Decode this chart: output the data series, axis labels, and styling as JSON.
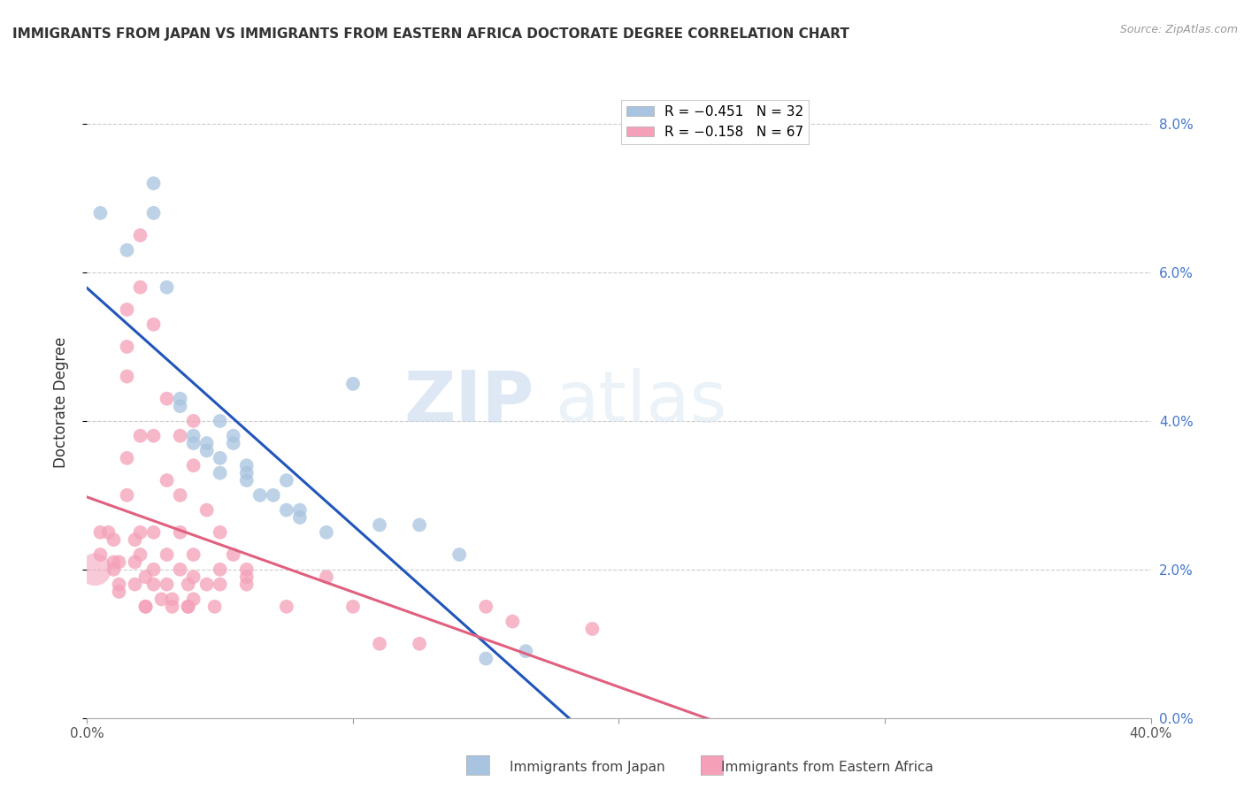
{
  "title": "IMMIGRANTS FROM JAPAN VS IMMIGRANTS FROM EASTERN AFRICA DOCTORATE DEGREE CORRELATION CHART",
  "source": "Source: ZipAtlas.com",
  "ylabel": "Doctorate Degree",
  "japan_color": "#a8c4e0",
  "africa_color": "#f4a0b8",
  "japan_line_color": "#2255bb",
  "africa_line_color": "#e06080",
  "watermark_zip": "ZIP",
  "watermark_atlas": "atlas",
  "japan_points": [
    [
      0.5,
      6.8
    ],
    [
      1.5,
      6.3
    ],
    [
      2.5,
      7.2
    ],
    [
      2.5,
      6.8
    ],
    [
      3.0,
      5.8
    ],
    [
      3.5,
      4.3
    ],
    [
      3.5,
      4.2
    ],
    [
      4.0,
      3.8
    ],
    [
      4.0,
      3.7
    ],
    [
      4.5,
      3.7
    ],
    [
      4.5,
      3.6
    ],
    [
      5.0,
      4.0
    ],
    [
      5.0,
      3.5
    ],
    [
      5.0,
      3.3
    ],
    [
      5.5,
      3.8
    ],
    [
      5.5,
      3.7
    ],
    [
      6.0,
      3.4
    ],
    [
      6.0,
      3.3
    ],
    [
      6.0,
      3.2
    ],
    [
      6.5,
      3.0
    ],
    [
      7.0,
      3.0
    ],
    [
      7.5,
      3.2
    ],
    [
      7.5,
      2.8
    ],
    [
      8.0,
      2.8
    ],
    [
      8.0,
      2.7
    ],
    [
      9.0,
      2.5
    ],
    [
      10.0,
      4.5
    ],
    [
      11.0,
      2.6
    ],
    [
      12.5,
      2.6
    ],
    [
      14.0,
      2.2
    ],
    [
      15.0,
      0.8
    ],
    [
      16.5,
      0.9
    ]
  ],
  "africa_points": [
    [
      0.5,
      2.5
    ],
    [
      0.5,
      2.2
    ],
    [
      0.8,
      2.5
    ],
    [
      1.0,
      2.4
    ],
    [
      1.0,
      2.1
    ],
    [
      1.0,
      2.0
    ],
    [
      1.2,
      2.1
    ],
    [
      1.2,
      1.8
    ],
    [
      1.2,
      1.7
    ],
    [
      1.5,
      5.5
    ],
    [
      1.5,
      5.0
    ],
    [
      1.5,
      4.6
    ],
    [
      1.5,
      3.5
    ],
    [
      1.5,
      3.0
    ],
    [
      1.8,
      2.4
    ],
    [
      1.8,
      2.1
    ],
    [
      1.8,
      1.8
    ],
    [
      2.0,
      6.5
    ],
    [
      2.0,
      5.8
    ],
    [
      2.0,
      3.8
    ],
    [
      2.0,
      2.5
    ],
    [
      2.0,
      2.2
    ],
    [
      2.2,
      1.9
    ],
    [
      2.2,
      1.5
    ],
    [
      2.2,
      1.5
    ],
    [
      2.5,
      5.3
    ],
    [
      2.5,
      3.8
    ],
    [
      2.5,
      2.5
    ],
    [
      2.5,
      2.0
    ],
    [
      2.5,
      1.8
    ],
    [
      2.8,
      1.6
    ],
    [
      3.0,
      4.3
    ],
    [
      3.0,
      3.2
    ],
    [
      3.0,
      2.2
    ],
    [
      3.0,
      1.8
    ],
    [
      3.2,
      1.6
    ],
    [
      3.2,
      1.5
    ],
    [
      3.5,
      3.8
    ],
    [
      3.5,
      3.0
    ],
    [
      3.5,
      2.5
    ],
    [
      3.5,
      2.0
    ],
    [
      3.8,
      1.8
    ],
    [
      3.8,
      1.5
    ],
    [
      3.8,
      1.5
    ],
    [
      4.0,
      4.0
    ],
    [
      4.0,
      3.4
    ],
    [
      4.0,
      2.2
    ],
    [
      4.0,
      1.9
    ],
    [
      4.0,
      1.6
    ],
    [
      4.5,
      2.8
    ],
    [
      4.5,
      1.8
    ],
    [
      4.8,
      1.5
    ],
    [
      5.0,
      2.5
    ],
    [
      5.0,
      2.0
    ],
    [
      5.0,
      1.8
    ],
    [
      5.5,
      2.2
    ],
    [
      6.0,
      2.0
    ],
    [
      6.0,
      1.9
    ],
    [
      6.0,
      1.8
    ],
    [
      7.5,
      1.5
    ],
    [
      9.0,
      1.9
    ],
    [
      10.0,
      1.5
    ],
    [
      11.0,
      1.0
    ],
    [
      12.5,
      1.0
    ],
    [
      15.0,
      1.5
    ],
    [
      16.0,
      1.3
    ],
    [
      19.0,
      1.2
    ]
  ],
  "africa_large_point": [
    0.3,
    2.0
  ],
  "xlim": [
    0.0,
    40.0
  ],
  "ylim": [
    0.0,
    8.5
  ],
  "xtick_positions": [
    0.0,
    10.0,
    20.0,
    30.0,
    40.0
  ],
  "xtick_labels_show": [
    "0.0%",
    "",
    "",
    "",
    "40.0%"
  ],
  "ytick_positions": [
    0.0,
    2.0,
    4.0,
    6.0,
    8.0
  ],
  "ytick_labels": [
    "0.0%",
    "2.0%",
    "4.0%",
    "6.0%",
    "8.0%"
  ],
  "grid_color": "#cccccc",
  "background_color": "#ffffff",
  "title_fontsize": 11,
  "axis_label_fontsize": 11,
  "tick_fontsize": 11
}
